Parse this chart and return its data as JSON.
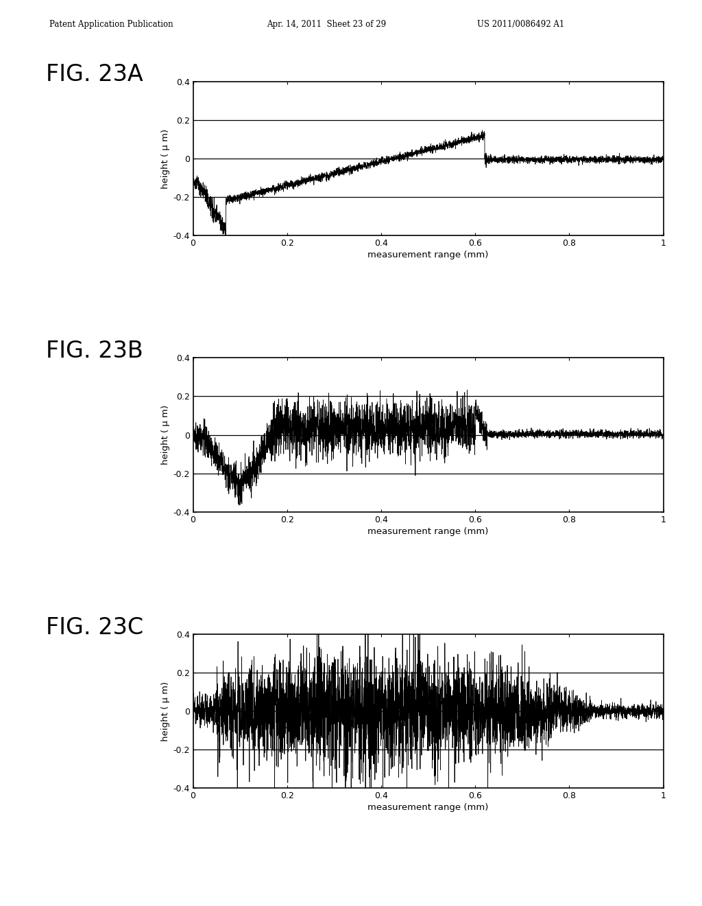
{
  "title_header_left": "Patent Application Publication",
  "title_header_mid": "Apr. 14, 2011  Sheet 23 of 29",
  "title_header_right": "US 2011/0086492 A1",
  "fig_labels": [
    "FIG. 23A",
    "FIG. 23B",
    "FIG. 23C"
  ],
  "ylabel": "height ( μ m)",
  "xlabel": "measurement range (mm)",
  "ylim": [
    -0.4,
    0.4
  ],
  "xlim": [
    0,
    1
  ],
  "yticks": [
    -0.4,
    -0.2,
    0,
    0.2,
    0.4
  ],
  "xticks": [
    0,
    0.2,
    0.4,
    0.6,
    0.8,
    1
  ],
  "hlines": [
    0.2,
    0,
    -0.2
  ],
  "background_color": "#ffffff",
  "line_color": "#000000",
  "page_bg": "#e8e8e8"
}
